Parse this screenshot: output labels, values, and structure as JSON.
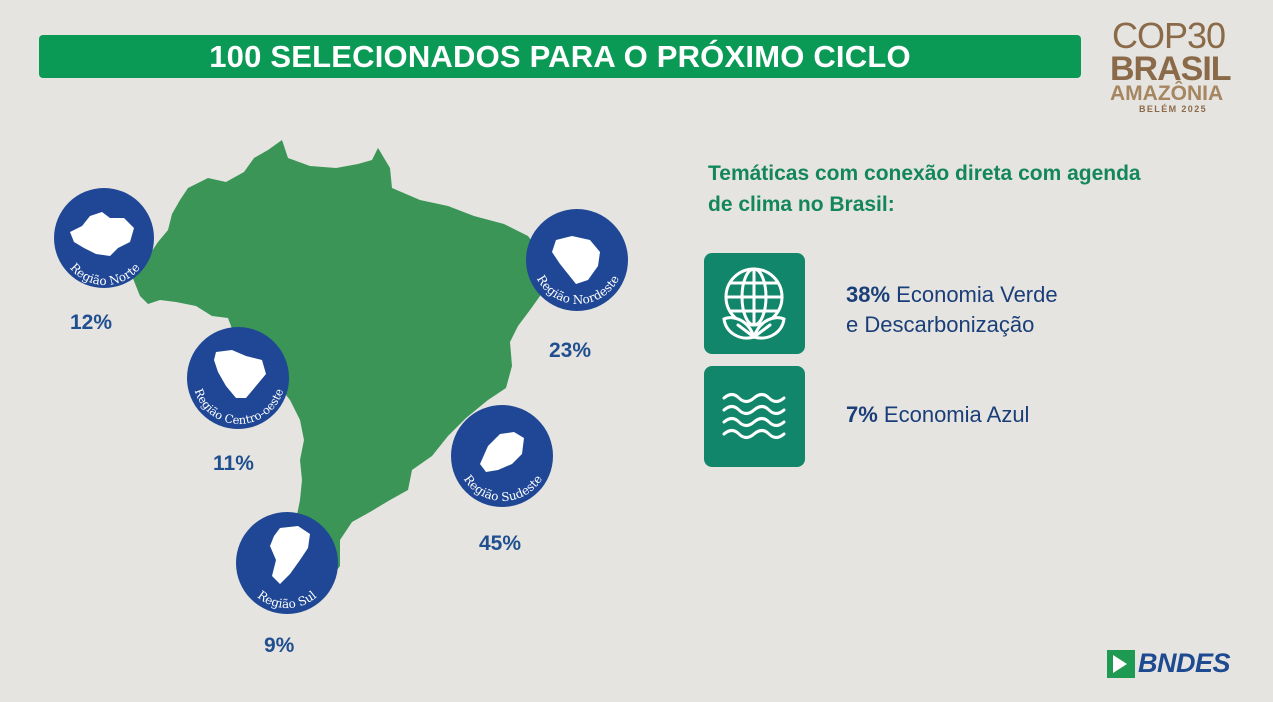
{
  "title": "100 SELECIONADOS PARA O PRÓXIMO CICLO",
  "logo": {
    "line1": "COP30",
    "line2": "BRASIL",
    "line3": "AMAZÔNIA",
    "line4": "BELÉM 2025"
  },
  "regions": [
    {
      "name": "Região Norte",
      "percent": "12%"
    },
    {
      "name": "Região Nordeste",
      "percent": "23%"
    },
    {
      "name": "Região Centro-oeste",
      "percent": "11%"
    },
    {
      "name": "Região Sudeste",
      "percent": "45%"
    },
    {
      "name": "Região Sul",
      "percent": "9%"
    }
  ],
  "themes": {
    "heading": "Temáticas com conexão direta com agenda de clima no Brasil:",
    "items": [
      {
        "percent": "38%",
        "label_line1": "Economia Verde",
        "label_line2": "e Descarbonização",
        "icon": "globe-leaves-icon"
      },
      {
        "percent": "7%",
        "label_line1": "Economia Azul",
        "label_line2": "",
        "icon": "waves-icon"
      }
    ]
  },
  "footer_logo": "BNDES",
  "colors": {
    "background": "#e6e4e0",
    "title_bar": "#0b9a56",
    "map_green": "#3a9557",
    "region_circle": "#1f4795",
    "percent_text": "#1f4f8f",
    "heading_green": "#13875b",
    "icon_tile": "#11866a",
    "cop_brown": "#8a6a48",
    "bndes_green": "#1f9a52",
    "bndes_blue": "#1e4a92"
  }
}
